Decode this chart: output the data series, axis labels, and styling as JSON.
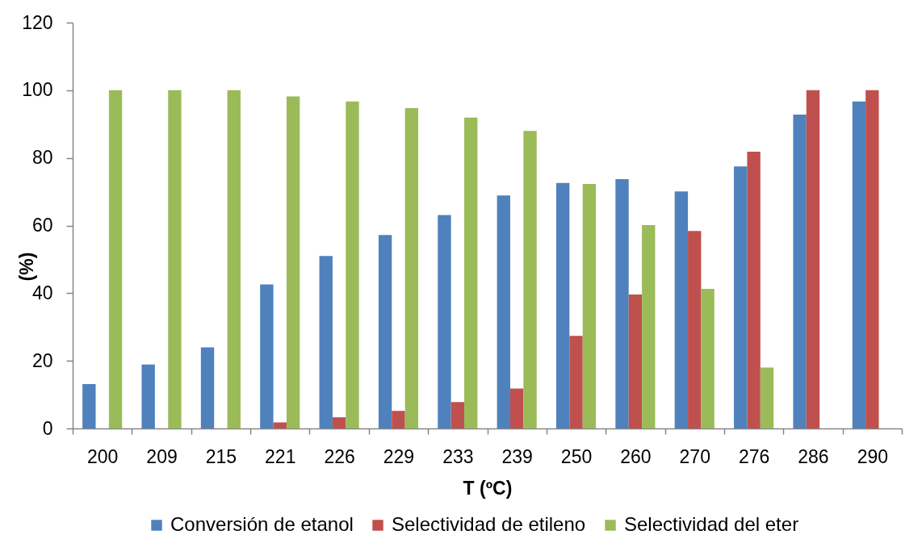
{
  "chart_data": {
    "type": "bar",
    "xlabel": "T (ºC)",
    "ylabel": "(%)",
    "categories": [
      "200",
      "209",
      "215",
      "221",
      "226",
      "229",
      "233",
      "239",
      "250",
      "260",
      "270",
      "276",
      "286",
      "290"
    ],
    "series": [
      {
        "name": "Conversión de etanol",
        "color": "#4f81bd",
        "values": [
          13.1,
          18.9,
          24.0,
          42.6,
          51.0,
          57.2,
          63.1,
          68.9,
          72.6,
          73.7,
          70.1,
          77.5,
          92.8,
          96.7
        ]
      },
      {
        "name": "Selectividad de etileno",
        "color": "#c0504d",
        "values": [
          null,
          null,
          null,
          1.8,
          3.3,
          5.2,
          7.8,
          11.8,
          27.4,
          39.6,
          58.4,
          81.8,
          100,
          100
        ]
      },
      {
        "name": "Selectividad del eter",
        "color": "#9bbb59",
        "values": [
          100,
          100,
          100,
          98.2,
          96.7,
          94.7,
          91.9,
          88.0,
          72.3,
          60.1,
          41.3,
          18.0,
          null,
          null
        ]
      }
    ],
    "ylim": [
      0,
      120
    ],
    "yticks": [
      0,
      20,
      40,
      60,
      80,
      100,
      120
    ],
    "legend": "bottom"
  }
}
